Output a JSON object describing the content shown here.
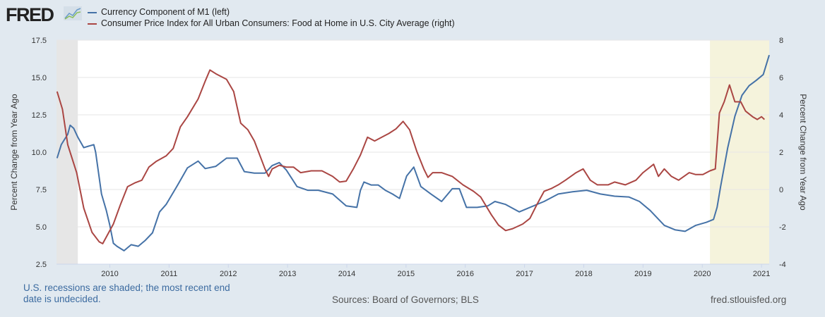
{
  "header": {
    "logo_text": "FRED",
    "legend": [
      {
        "label": "Currency Component of M1 (left)",
        "color": "#4572a7"
      },
      {
        "label": "Consumer Price Index for All Urban Consumers: Food at Home in U.S. City Average (right)",
        "color": "#aa4643"
      }
    ]
  },
  "chart_data": {
    "type": "line",
    "title": "",
    "xlabel": "",
    "ylabel": "Percent Change from Year Ago",
    "ylabel_right": "Percent Change from Year Ago",
    "xlim": [
      2009.1,
      2021.13
    ],
    "ylim_left": [
      2.5,
      17.5
    ],
    "ylim_right": [
      -4,
      8
    ],
    "x_ticks": [
      "2010",
      "2011",
      "2012",
      "2013",
      "2014",
      "2015",
      "2016",
      "2017",
      "2018",
      "2019",
      "2020",
      "2021"
    ],
    "y_ticks_left": [
      "2.5",
      "5.0",
      "7.5",
      "10.0",
      "12.5",
      "15.0",
      "17.5"
    ],
    "y_ticks_right": [
      "-4",
      "-2",
      "0",
      "2",
      "4",
      "6",
      "8"
    ],
    "grid": true,
    "legend_placement": "top-left",
    "recessions": [
      [
        2009.1,
        2009.46
      ],
      [
        2020.13,
        2021.13
      ]
    ],
    "series": [
      {
        "name": "Currency Component of M1 (left)",
        "axis": "left",
        "color": "#4572a7",
        "points": [
          [
            2009.11,
            9.6
          ],
          [
            2009.18,
            10.5
          ],
          [
            2009.29,
            11.2
          ],
          [
            2009.33,
            11.8
          ],
          [
            2009.39,
            11.6
          ],
          [
            2009.46,
            11.0
          ],
          [
            2009.56,
            10.3
          ],
          [
            2009.64,
            10.4
          ],
          [
            2009.73,
            10.5
          ],
          [
            2009.76,
            10.0
          ],
          [
            2009.86,
            7.2
          ],
          [
            2009.94,
            6.1
          ],
          [
            2010.0,
            5.1
          ],
          [
            2010.06,
            3.9
          ],
          [
            2010.12,
            3.7
          ],
          [
            2010.24,
            3.4
          ],
          [
            2010.36,
            3.8
          ],
          [
            2010.48,
            3.7
          ],
          [
            2010.6,
            4.1
          ],
          [
            2010.72,
            4.6
          ],
          [
            2010.84,
            6.0
          ],
          [
            2010.95,
            6.5
          ],
          [
            2011.13,
            7.7
          ],
          [
            2011.31,
            8.95
          ],
          [
            2011.49,
            9.4
          ],
          [
            2011.61,
            8.9
          ],
          [
            2011.79,
            9.05
          ],
          [
            2011.97,
            9.6
          ],
          [
            2012.15,
            9.6
          ],
          [
            2012.27,
            8.7
          ],
          [
            2012.44,
            8.6
          ],
          [
            2012.62,
            8.6
          ],
          [
            2012.74,
            9.1
          ],
          [
            2012.86,
            9.3
          ],
          [
            2012.98,
            8.8
          ],
          [
            2013.16,
            7.7
          ],
          [
            2013.34,
            7.45
          ],
          [
            2013.52,
            7.45
          ],
          [
            2013.76,
            7.2
          ],
          [
            2013.99,
            6.4
          ],
          [
            2014.17,
            6.3
          ],
          [
            2014.23,
            7.45
          ],
          [
            2014.29,
            8.0
          ],
          [
            2014.41,
            7.8
          ],
          [
            2014.53,
            7.8
          ],
          [
            2014.65,
            7.45
          ],
          [
            2014.77,
            7.2
          ],
          [
            2014.89,
            6.9
          ],
          [
            2015.01,
            8.4
          ],
          [
            2015.13,
            9.0
          ],
          [
            2015.25,
            7.7
          ],
          [
            2015.42,
            7.2
          ],
          [
            2015.6,
            6.7
          ],
          [
            2015.78,
            7.55
          ],
          [
            2015.9,
            7.55
          ],
          [
            2016.02,
            6.3
          ],
          [
            2016.2,
            6.3
          ],
          [
            2016.38,
            6.4
          ],
          [
            2016.5,
            6.7
          ],
          [
            2016.68,
            6.5
          ],
          [
            2016.91,
            6.0
          ],
          [
            2017.09,
            6.3
          ],
          [
            2017.33,
            6.7
          ],
          [
            2017.57,
            7.2
          ],
          [
            2017.81,
            7.35
          ],
          [
            2018.05,
            7.45
          ],
          [
            2018.28,
            7.2
          ],
          [
            2018.52,
            7.05
          ],
          [
            2018.76,
            7.0
          ],
          [
            2018.94,
            6.7
          ],
          [
            2019.12,
            6.1
          ],
          [
            2019.36,
            5.1
          ],
          [
            2019.54,
            4.8
          ],
          [
            2019.71,
            4.7
          ],
          [
            2019.89,
            5.1
          ],
          [
            2020.07,
            5.3
          ],
          [
            2020.19,
            5.5
          ],
          [
            2020.25,
            6.3
          ],
          [
            2020.31,
            7.7
          ],
          [
            2020.43,
            10.3
          ],
          [
            2020.55,
            12.4
          ],
          [
            2020.67,
            13.8
          ],
          [
            2020.79,
            14.45
          ],
          [
            2020.91,
            14.8
          ],
          [
            2021.03,
            15.2
          ],
          [
            2021.13,
            16.5
          ]
        ]
      },
      {
        "name": "Consumer Price Index for All Urban Consumers: Food at Home in U.S. City Average (right)",
        "axis": "right",
        "color": "#aa4643",
        "points": [
          [
            2009.11,
            5.25
          ],
          [
            2009.2,
            4.3
          ],
          [
            2009.29,
            2.4
          ],
          [
            2009.44,
            0.9
          ],
          [
            2009.56,
            -1.0
          ],
          [
            2009.7,
            -2.3
          ],
          [
            2009.82,
            -2.8
          ],
          [
            2009.88,
            -2.9
          ],
          [
            2010.06,
            -1.85
          ],
          [
            2010.18,
            -0.8
          ],
          [
            2010.3,
            0.15
          ],
          [
            2010.42,
            0.35
          ],
          [
            2010.54,
            0.5
          ],
          [
            2010.66,
            1.2
          ],
          [
            2010.78,
            1.5
          ],
          [
            2010.95,
            1.8
          ],
          [
            2011.07,
            2.2
          ],
          [
            2011.19,
            3.35
          ],
          [
            2011.31,
            3.9
          ],
          [
            2011.49,
            4.85
          ],
          [
            2011.61,
            5.8
          ],
          [
            2011.69,
            6.4
          ],
          [
            2011.79,
            6.2
          ],
          [
            2011.91,
            6.0
          ],
          [
            2011.97,
            5.9
          ],
          [
            2012.09,
            5.25
          ],
          [
            2012.21,
            3.55
          ],
          [
            2012.33,
            3.2
          ],
          [
            2012.44,
            2.6
          ],
          [
            2012.62,
            1.1
          ],
          [
            2012.68,
            0.7
          ],
          [
            2012.74,
            1.1
          ],
          [
            2012.86,
            1.3
          ],
          [
            2012.98,
            1.2
          ],
          [
            2013.1,
            1.2
          ],
          [
            2013.22,
            0.9
          ],
          [
            2013.4,
            1.0
          ],
          [
            2013.58,
            1.0
          ],
          [
            2013.76,
            0.7
          ],
          [
            2013.88,
            0.4
          ],
          [
            2013.99,
            0.45
          ],
          [
            2014.11,
            1.1
          ],
          [
            2014.23,
            1.85
          ],
          [
            2014.35,
            2.8
          ],
          [
            2014.47,
            2.6
          ],
          [
            2014.59,
            2.8
          ],
          [
            2014.71,
            3.0
          ],
          [
            2014.83,
            3.25
          ],
          [
            2014.95,
            3.65
          ],
          [
            2015.06,
            3.2
          ],
          [
            2015.18,
            2.05
          ],
          [
            2015.3,
            1.1
          ],
          [
            2015.37,
            0.65
          ],
          [
            2015.45,
            0.9
          ],
          [
            2015.6,
            0.9
          ],
          [
            2015.78,
            0.7
          ],
          [
            2015.96,
            0.25
          ],
          [
            2016.14,
            -0.1
          ],
          [
            2016.26,
            -0.4
          ],
          [
            2016.44,
            -1.35
          ],
          [
            2016.56,
            -1.9
          ],
          [
            2016.68,
            -2.2
          ],
          [
            2016.8,
            -2.1
          ],
          [
            2016.97,
            -1.85
          ],
          [
            2017.09,
            -1.55
          ],
          [
            2017.21,
            -0.8
          ],
          [
            2017.33,
            -0.1
          ],
          [
            2017.45,
            0.05
          ],
          [
            2017.57,
            0.25
          ],
          [
            2017.69,
            0.5
          ],
          [
            2017.87,
            0.9
          ],
          [
            2017.99,
            1.1
          ],
          [
            2018.11,
            0.5
          ],
          [
            2018.23,
            0.25
          ],
          [
            2018.41,
            0.25
          ],
          [
            2018.52,
            0.4
          ],
          [
            2018.7,
            0.25
          ],
          [
            2018.88,
            0.5
          ],
          [
            2019.0,
            0.9
          ],
          [
            2019.18,
            1.35
          ],
          [
            2019.26,
            0.7
          ],
          [
            2019.36,
            1.1
          ],
          [
            2019.48,
            0.7
          ],
          [
            2019.6,
            0.5
          ],
          [
            2019.78,
            0.9
          ],
          [
            2019.89,
            0.8
          ],
          [
            2020.01,
            0.8
          ],
          [
            2020.13,
            1.0
          ],
          [
            2020.22,
            1.1
          ],
          [
            2020.29,
            4.1
          ],
          [
            2020.37,
            4.7
          ],
          [
            2020.46,
            5.6
          ],
          [
            2020.55,
            4.7
          ],
          [
            2020.65,
            4.7
          ],
          [
            2020.73,
            4.2
          ],
          [
            2020.85,
            3.9
          ],
          [
            2020.93,
            3.75
          ],
          [
            2021.0,
            3.9
          ],
          [
            2021.05,
            3.75
          ]
        ]
      }
    ]
  },
  "footer": {
    "note": "U.S. recessions are shaded; the most recent end date is undecided.",
    "sources": "Sources: Board of Governors; BLS",
    "site": "fred.stlouisfed.org"
  }
}
